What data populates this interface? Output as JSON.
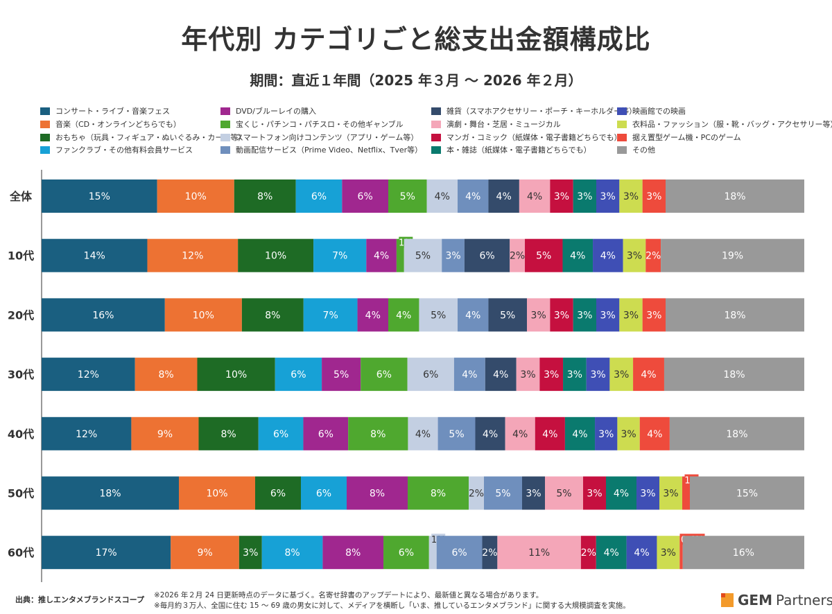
{
  "chart_data": {
    "type": "bar",
    "orientation": "horizontal",
    "stacked": "100%",
    "title": "年代別 カテゴリごと総支出金額構成比",
    "subtitle": "期間：直近１年間（2025 年３月 〜 2026 年２月）",
    "legend_position": "top",
    "grid": false,
    "categories": [
      "全体",
      "10代",
      "20代",
      "30代",
      "40代",
      "50代",
      "60代"
    ],
    "series": [
      {
        "name": "コンサート・ライブ・音楽フェス",
        "color": "#1a5f80",
        "values": [
          15,
          14,
          16,
          12,
          12,
          18,
          17
        ]
      },
      {
        "name": "音楽（CD・オンラインどちらでも）",
        "color": "#ed7233",
        "values": [
          10,
          12,
          10,
          8,
          9,
          10,
          9
        ]
      },
      {
        "name": "おもちゃ（玩具・フィギュア・ぬいぐるみ・カード等）",
        "color": "#1e6b25",
        "values": [
          8,
          10,
          8,
          10,
          8,
          6,
          3
        ]
      },
      {
        "name": "ファンクラブ・その他有料会員サービス",
        "color": "#17a1d6",
        "values": [
          6,
          7,
          7,
          6,
          6,
          6,
          8
        ]
      },
      {
        "name": "DVD/ブルーレイの購入",
        "color": "#a0278f",
        "values": [
          6,
          4,
          4,
          5,
          6,
          8,
          8
        ]
      },
      {
        "name": "宝くじ・パチンコ・パチスロ・その他ギャンブル",
        "color": "#4fa82f",
        "values": [
          5,
          1,
          4,
          6,
          8,
          8,
          6
        ]
      },
      {
        "name": "スマートフォン向けコンテンツ（アプリ・ゲーム等）",
        "color": "#c3cfe2",
        "values": [
          4,
          5,
          5,
          6,
          4,
          2,
          1
        ]
      },
      {
        "name": "動画配信サービス（Prime Video、Netflix、Tver等）",
        "color": "#6f8fbd",
        "values": [
          4,
          3,
          4,
          4,
          5,
          5,
          6
        ]
      },
      {
        "name": "雑貨（スマホアクセサリー・ポーチ・キーホルダー等）",
        "color": "#344b6b",
        "values": [
          4,
          6,
          5,
          4,
          4,
          3,
          2
        ]
      },
      {
        "name": "演劇・舞台・芝居・ミュージカル",
        "color": "#f4a6b8",
        "values": [
          4,
          2,
          3,
          3,
          4,
          5,
          11
        ]
      },
      {
        "name": "マンガ・コミック（紙媒体・電子書籍どちらでも）",
        "color": "#c5103f",
        "values": [
          3,
          5,
          3,
          3,
          4,
          3,
          2
        ]
      },
      {
        "name": "本・雑誌（紙媒体・電子書籍どちらでも）",
        "color": "#0a7a6e",
        "values": [
          3,
          4,
          3,
          3,
          4,
          4,
          4
        ]
      },
      {
        "name": "映画館での映画",
        "color": "#3f4fb5",
        "values": [
          3,
          4,
          3,
          3,
          3,
          3,
          4
        ]
      },
      {
        "name": "衣料品・ファッション（服・靴・バッグ・アクセサリー等）",
        "color": "#cddc50",
        "values": [
          3,
          3,
          3,
          3,
          3,
          3,
          3
        ]
      },
      {
        "name": "据え置型ゲーム機・PCのゲーム",
        "color": "#ee4b3c",
        "values": [
          3,
          2,
          3,
          4,
          4,
          1,
          0.4
        ]
      },
      {
        "name": "その他",
        "color": "#999999",
        "values": [
          18,
          19,
          18,
          18,
          18,
          15,
          16
        ]
      }
    ],
    "unit": "%"
  },
  "footer": {
    "source": "出典：推しエンタメブランドスコープ",
    "note1": "※2026 年２月 24 日更新時点のデータに基づく。名寄せ辞書のアップデートにより、最新値と異なる場合があります。",
    "note2": "※毎月約３万人、全国に住む 15 〜 69 歳の男女に対して、メディアを横断し「いま、推しているエンタメブランド」に関する大規模調査を実施。",
    "logo": "GEM Partners"
  }
}
